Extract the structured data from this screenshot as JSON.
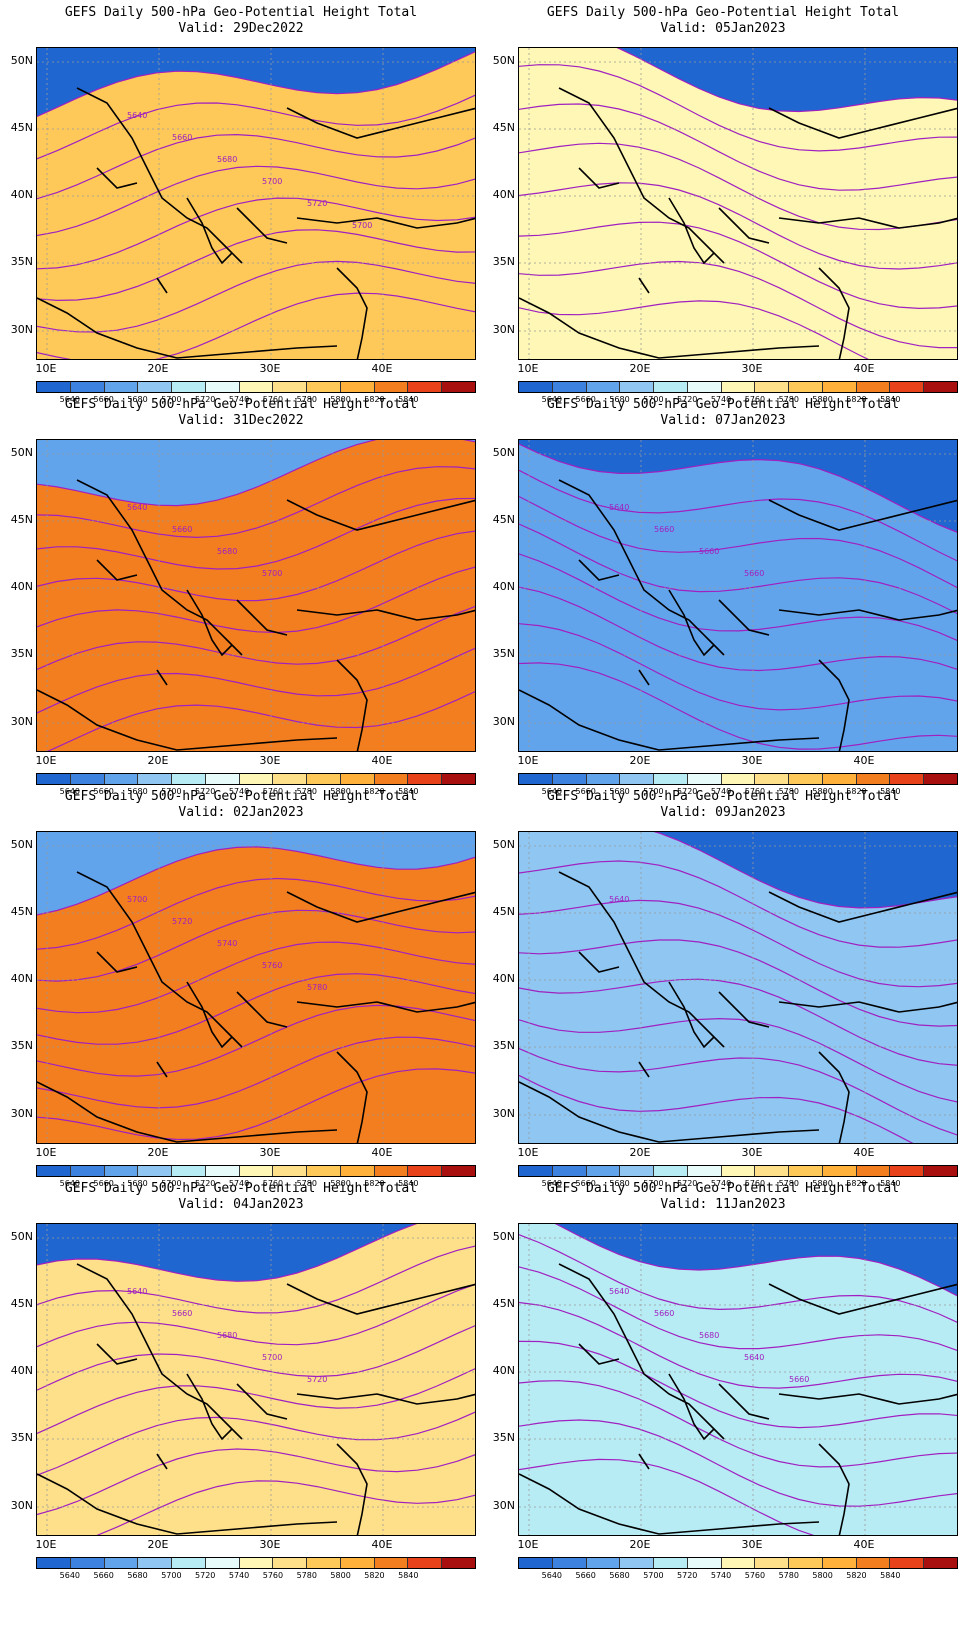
{
  "panels": [
    {
      "title": "GEFS Daily 500-hPa Geo-Potential Height Total",
      "valid": "Valid: 29Dec2022",
      "bands": [
        "#ffc95a",
        "#ffe08a",
        "#fff7b5",
        "#e8fbfb",
        "#b8ecf5",
        "#8fc7f2",
        "#62a4ec",
        "#3e82df",
        "#1f66d1"
      ],
      "labels": [
        "5640",
        "5660",
        "5680",
        "5700",
        "5720",
        "5700"
      ]
    },
    {
      "title": "GEFS Daily 500-hPa Geo-Potential Height Total",
      "valid": "Valid: 05Jan2023",
      "bands": [
        "#fff7b5",
        "#e8fbfb",
        "#b8ecf5",
        "#8fc7f2",
        "#62a4ec",
        "#3e82df",
        "#1f66d1",
        "#1f66d1",
        "#1f66d1"
      ],
      "labels": []
    },
    {
      "title": "GEFS Daily 500-hPa Geo-Potential Height Total",
      "valid": "Valid: 31Dec2022",
      "bands": [
        "#f37e1f",
        "#ffb13b",
        "#ffc95a",
        "#ffe08a",
        "#fff7b5",
        "#e8fbfb",
        "#b8ecf5",
        "#8fc7f2",
        "#62a4ec"
      ],
      "labels": [
        "5640",
        "5660",
        "5680",
        "5700"
      ]
    },
    {
      "title": "GEFS Daily 500-hPa Geo-Potential Height Total",
      "valid": "Valid: 07Jan2023",
      "bands": [
        "#62a4ec",
        "#3e82df",
        "#1f66d1",
        "#1f66d1",
        "#1f66d1",
        "#1f66d1",
        "#1f66d1",
        "#1f66d1",
        "#1f66d1"
      ],
      "labels": [
        "5640",
        "5660",
        "5660",
        "5660"
      ]
    },
    {
      "title": "GEFS Daily 500-hPa Geo-Potential Height Total",
      "valid": "Valid: 02Jan2023",
      "bands": [
        "#f37e1f",
        "#ffb13b",
        "#ffc95a",
        "#ffe08a",
        "#fff7b5",
        "#e8fbfb",
        "#b8ecf5",
        "#8fc7f2",
        "#62a4ec"
      ],
      "labels": [
        "5700",
        "5720",
        "5740",
        "5760",
        "5780"
      ]
    },
    {
      "title": "GEFS Daily 500-hPa Geo-Potential Height Total",
      "valid": "Valid: 09Jan2023",
      "bands": [
        "#8fc7f2",
        "#62a4ec",
        "#3e82df",
        "#1f66d1",
        "#1f66d1",
        "#1f66d1",
        "#1f66d1",
        "#1f66d1",
        "#1f66d1"
      ],
      "labels": [
        "5640"
      ]
    },
    {
      "title": "GEFS Daily 500-hPa Geo-Potential Height Total",
      "valid": "Valid: 04Jan2023",
      "bands": [
        "#ffe08a",
        "#fff7b5",
        "#e8fbfb",
        "#b8ecf5",
        "#8fc7f2",
        "#62a4ec",
        "#3e82df",
        "#1f66d1",
        "#1f66d1"
      ],
      "labels": [
        "5640",
        "5660",
        "5680",
        "5700",
        "5720"
      ]
    },
    {
      "title": "GEFS Daily 500-hPa Geo-Potential Height Total",
      "valid": "Valid: 11Jan2023",
      "bands": [
        "#b8ecf5",
        "#8fc7f2",
        "#62a4ec",
        "#3e82df",
        "#1f66d1",
        "#1f66d1",
        "#1f66d1",
        "#1f66d1",
        "#1f66d1"
      ],
      "labels": [
        "5640",
        "5660",
        "5680",
        "5640",
        "5660"
      ]
    }
  ],
  "axes": {
    "lat_labels": [
      "50N",
      "45N",
      "40N",
      "35N",
      "30N"
    ],
    "lon_labels": [
      "10E",
      "20E",
      "30E",
      "40E"
    ]
  },
  "colorbar": {
    "labels": [
      "5640",
      "5660",
      "5680",
      "5700",
      "5720",
      "5740",
      "5760",
      "5780",
      "5800",
      "5820",
      "5840"
    ],
    "colors": [
      "#1f66d1",
      "#3e82df",
      "#62a4ec",
      "#8fc7f2",
      "#b8ecf5",
      "#e8fbfb",
      "#fff7b5",
      "#ffe08a",
      "#ffc95a",
      "#ffb13b",
      "#f37e1f",
      "#e8421a",
      "#a80f0f"
    ]
  },
  "contour_color": "#a020c0"
}
